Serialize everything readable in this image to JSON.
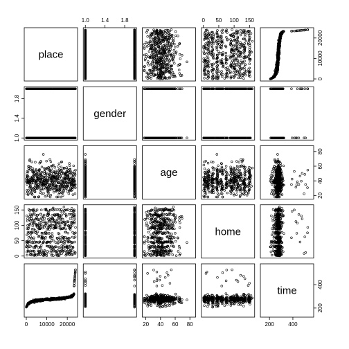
{
  "chart_data": {
    "type": "scatter",
    "subtype": "scatterplot-matrix",
    "variables": [
      "place",
      "gender",
      "age",
      "home",
      "time"
    ],
    "ranges": {
      "place": [
        0,
        24000
      ],
      "gender": [
        1,
        2
      ],
      "age": [
        18,
        85
      ],
      "home": [
        0,
        160
      ],
      "time": [
        140,
        560
      ]
    },
    "axes": {
      "top": {
        "gender": [
          "1.0",
          "1.4",
          "1.8"
        ],
        "home": [
          "0",
          "50",
          "100",
          "150"
        ]
      },
      "right": {
        "place": [
          "0",
          "10000",
          "20000"
        ],
        "age": [
          "20",
          "40",
          "60",
          "80"
        ],
        "time": [
          "200",
          "400"
        ]
      },
      "left": {
        "gender": [
          "1.0",
          "1.4",
          "1.8"
        ],
        "home": [
          "0",
          "50",
          "100",
          "150"
        ]
      },
      "bottom": {
        "place": [
          "0",
          "10000",
          "20000"
        ],
        "age": [
          "20",
          "40",
          "60",
          "80"
        ],
        "time": [
          "200",
          "400"
        ]
      }
    },
    "n_points": 500,
    "grid": false,
    "legend": "none",
    "xlabel": "",
    "ylabel": "",
    "title": ""
  }
}
